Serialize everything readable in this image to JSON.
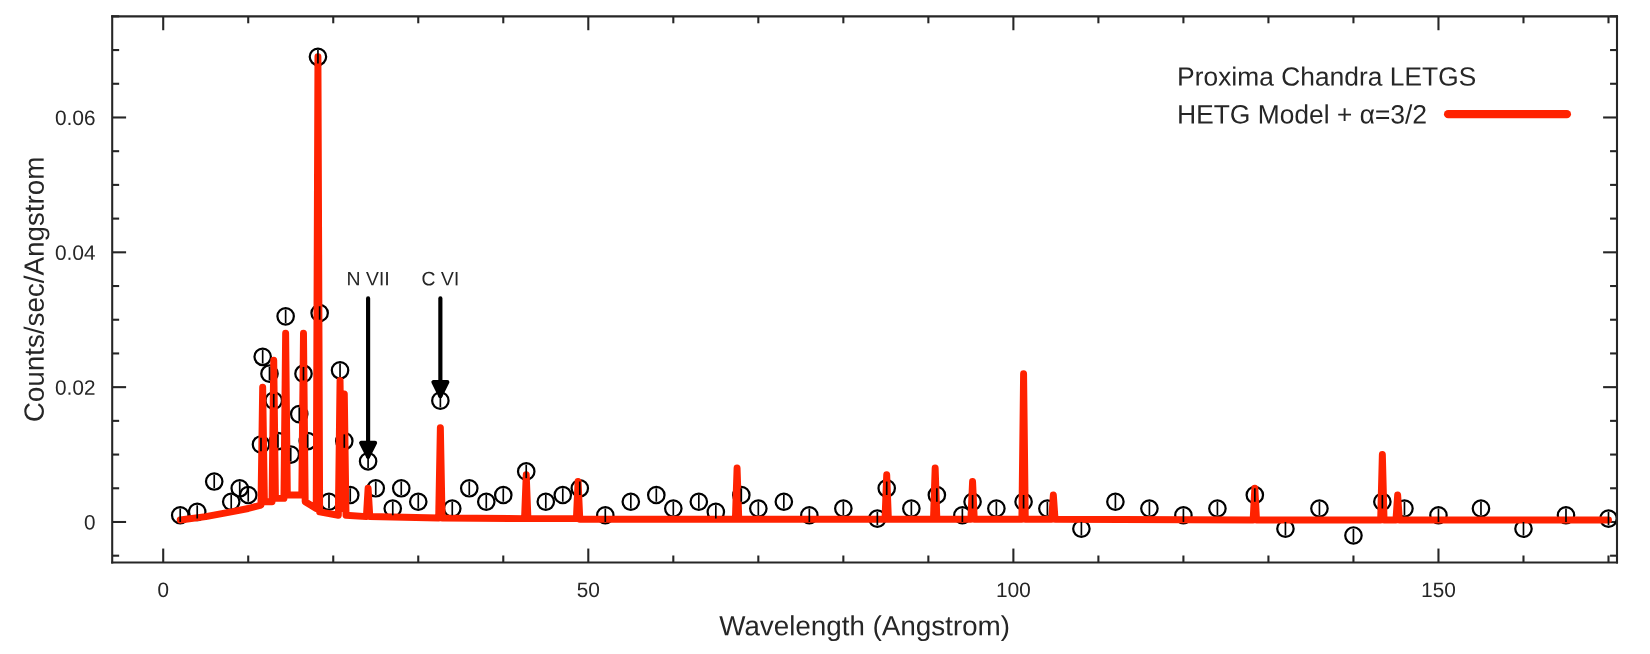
{
  "chart_data": {
    "type": "scatter",
    "xlabel": "Wavelength (Angstrom)",
    "ylabel": "Counts/sec/Angstrom",
    "legend_title": "Proxima Chandra LETGS",
    "legend": "top right",
    "grid": false,
    "xlim": [
      -6,
      171
    ],
    "xticks": [
      0,
      50,
      100,
      150
    ],
    "ylim": [
      -0.006,
      0.075
    ],
    "yticks": [
      0,
      0.02,
      0.04,
      0.06
    ],
    "annotations": [
      {
        "text": "N VII",
        "x": 24.1,
        "y": 0.009
      },
      {
        "text": "C VI",
        "x": 32.6,
        "y": 0.018
      }
    ],
    "series": [
      {
        "color": "#000000",
        "marker": "circle",
        "x": [
          2,
          4,
          6,
          8,
          9,
          10,
          11.5,
          11.7,
          12.5,
          13,
          13.5,
          14.4,
          15,
          16,
          16.5,
          17,
          18.2,
          18.4,
          19.5,
          20.8,
          21.3,
          22,
          24.1,
          25,
          27,
          28,
          30,
          32.6,
          34,
          36,
          38,
          40,
          42.7,
          45,
          47,
          49,
          52,
          55,
          58,
          60,
          63,
          65,
          68,
          70,
          73,
          76,
          80,
          84,
          85.1,
          88,
          91,
          94,
          95.2,
          98,
          101.2,
          104,
          108,
          112,
          116,
          120,
          124,
          128.4,
          132,
          136,
          140,
          143.4,
          146,
          150,
          155,
          160,
          165,
          170
        ],
        "values": [
          0.001,
          0.0015,
          0.006,
          0.003,
          0.005,
          0.004,
          0.0115,
          0.0245,
          0.022,
          0.018,
          0.012,
          0.0305,
          0.01,
          0.016,
          0.022,
          0.012,
          0.069,
          0.031,
          0.003,
          0.0225,
          0.012,
          0.004,
          0.009,
          0.005,
          0.002,
          0.005,
          0.003,
          0.018,
          0.002,
          0.005,
          0.003,
          0.004,
          0.0075,
          0.003,
          0.004,
          0.005,
          0.001,
          0.003,
          0.004,
          0.002,
          0.003,
          0.0015,
          0.004,
          0.002,
          0.003,
          0.001,
          0.002,
          0.0005,
          0.005,
          0.002,
          0.004,
          0.001,
          0.003,
          0.002,
          0.003,
          0.002,
          -0.001,
          0.003,
          0.002,
          0.001,
          0.002,
          0.004,
          -0.001,
          0.002,
          -0.002,
          0.003,
          0.002,
          0.001,
          0.002,
          -0.001,
          0.001,
          0.0005
        ],
        "errors": [
          0.001,
          0.001,
          0.001,
          0.001,
          0.001,
          0.001,
          0.001,
          0.001,
          0.001,
          0.001,
          0.001,
          0.001,
          0.001,
          0.001,
          0.001,
          0.001,
          0.001,
          0.001,
          0.001,
          0.001,
          0.001,
          0.001,
          0.001,
          0.001,
          0.001,
          0.001,
          0.001,
          0.001,
          0.001,
          0.001,
          0.001,
          0.001,
          0.001,
          0.001,
          0.001,
          0.001,
          0.001,
          0.001,
          0.001,
          0.001,
          0.001,
          0.001,
          0.001,
          0.001,
          0.001,
          0.001,
          0.001,
          0.001,
          0.001,
          0.001,
          0.001,
          0.001,
          0.001,
          0.001,
          0.001,
          0.001,
          0.001,
          0.001,
          0.001,
          0.001,
          0.001,
          0.001,
          0.001,
          0.001,
          0.001,
          0.001,
          0.001,
          0.001,
          0.001,
          0.001,
          0.001,
          0.001
        ]
      },
      {
        "type": "line",
        "name": "HETG Model + α=3/2",
        "color": "#ff2200",
        "line_style": "solid",
        "x": [
          2,
          5,
          8,
          10,
          11.5,
          11.7,
          11.9,
          12.8,
          13.0,
          13.2,
          14.2,
          14.4,
          14.6,
          15.5,
          16.3,
          16.5,
          16.7,
          18.0,
          18.2,
          18.4,
          20.6,
          20.8,
          21.0,
          21.3,
          21.5,
          23.9,
          24.1,
          24.3,
          32.4,
          32.6,
          32.8,
          42.5,
          42.7,
          42.9,
          48.6,
          48.8,
          49.0,
          67.3,
          67.5,
          67.7,
          84.9,
          85.1,
          85.3,
          90.6,
          90.8,
          91.0,
          95.0,
          95.2,
          95.4,
          101.0,
          101.2,
          101.4,
          104.5,
          104.7,
          104.9,
          128.2,
          128.4,
          128.6,
          143.2,
          143.4,
          143.6,
          145.0,
          145.2,
          145.4,
          170
        ],
        "values": [
          0.0003,
          0.0008,
          0.0015,
          0.002,
          0.0025,
          0.02,
          0.003,
          0.003,
          0.024,
          0.0035,
          0.0035,
          0.028,
          0.004,
          0.004,
          0.004,
          0.028,
          0.003,
          0.002,
          0.069,
          0.0015,
          0.001,
          0.021,
          0.002,
          0.019,
          0.001,
          0.0008,
          0.005,
          0.0008,
          0.0006,
          0.014,
          0.0006,
          0.0005,
          0.007,
          0.0005,
          0.0005,
          0.006,
          0.0004,
          0.0004,
          0.008,
          0.0004,
          0.0004,
          0.007,
          0.0004,
          0.0004,
          0.008,
          0.0004,
          0.0004,
          0.006,
          0.0004,
          0.0004,
          0.022,
          0.0004,
          0.0004,
          0.004,
          0.0004,
          0.0003,
          0.005,
          0.0003,
          0.0003,
          0.01,
          0.0003,
          0.0003,
          0.004,
          0.0003,
          0.0003
        ]
      }
    ]
  }
}
